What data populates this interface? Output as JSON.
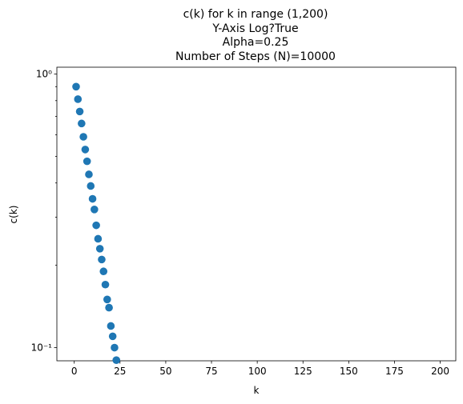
{
  "chart_data": {
    "type": "scatter",
    "title_lines": [
      "c(k) for k in range (1,200)",
      "Y-Axis Log?True",
      "Alpha=0.25",
      "Number of Steps (N)=10000"
    ],
    "xlabel": "k",
    "ylabel": "c(k)",
    "xlim": [
      -9.5,
      208.5
    ],
    "ylim": [
      0.0895,
      1.06
    ],
    "y_scale": "log",
    "grid": false,
    "legend": "none",
    "x_ticks": [
      0,
      25,
      50,
      75,
      100,
      125,
      150,
      175,
      200
    ],
    "x_tick_labels": [
      "0",
      "25",
      "50",
      "75",
      "100",
      "125",
      "150",
      "175",
      "200"
    ],
    "y_ticks": [
      0.1,
      1
    ],
    "y_tick_labels": [
      "10⁻¹",
      "10⁰"
    ],
    "color": "#1f77b4",
    "series": [
      {
        "x": [
          1,
          2,
          3,
          4,
          5,
          6,
          7,
          8,
          9,
          10,
          11,
          12,
          13,
          14,
          15,
          16,
          17,
          18,
          19,
          20,
          21,
          22,
          23
        ],
        "y": [
          0.9,
          0.81,
          0.73,
          0.66,
          0.59,
          0.53,
          0.48,
          0.43,
          0.39,
          0.35,
          0.32,
          0.28,
          0.25,
          0.23,
          0.21,
          0.19,
          0.17,
          0.15,
          0.14,
          0.12,
          0.11,
          0.1,
          0.09
        ]
      }
    ]
  }
}
